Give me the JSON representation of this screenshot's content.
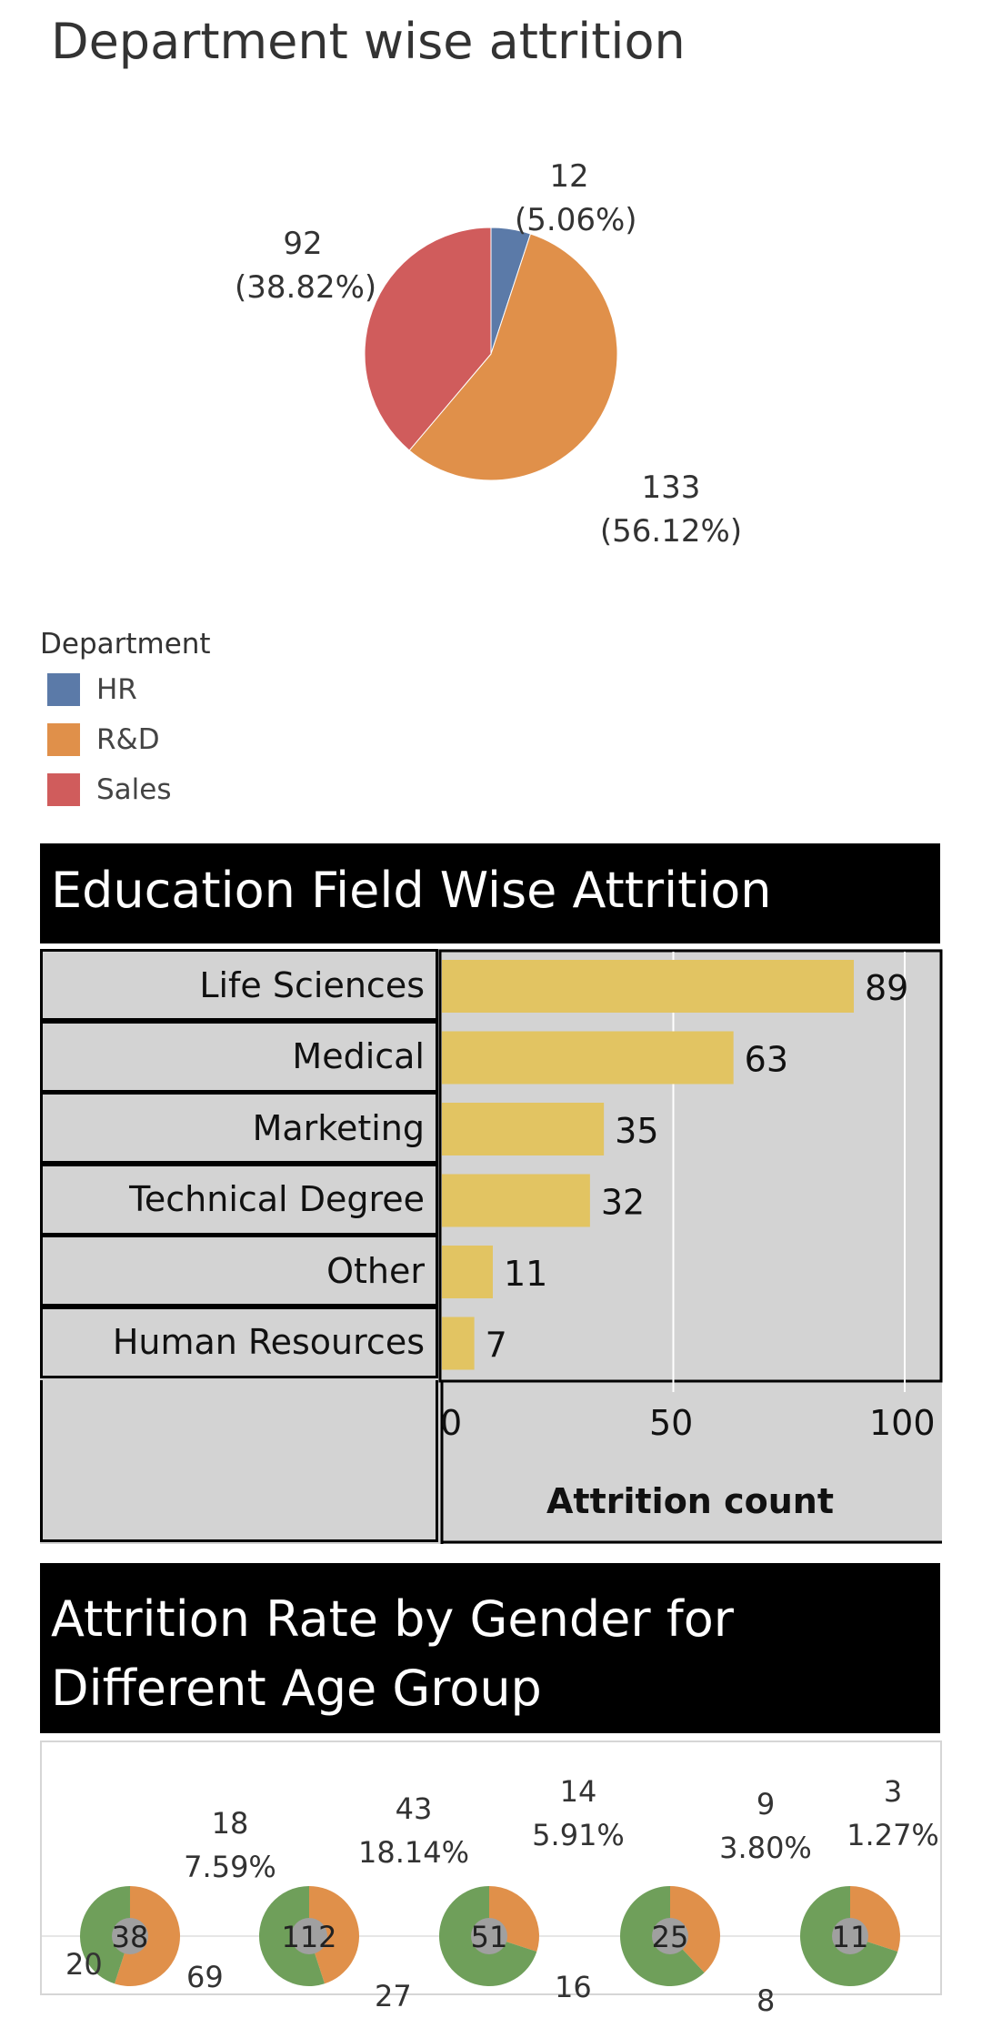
{
  "dept": {
    "title": "Department wise attrition",
    "legend_title": "Department",
    "legend": [
      {
        "label": "HR",
        "color": "#5b7aa8"
      },
      {
        "label": "R&D",
        "color": "#e0904a"
      },
      {
        "label": "Sales",
        "color": "#d05c5c"
      }
    ],
    "labels": [
      {
        "value": "12",
        "pct": "(5.06%)"
      },
      {
        "value": "133",
        "pct": "(56.12%)"
      },
      {
        "value": "92",
        "pct": "(38.82%)"
      }
    ]
  },
  "edu": {
    "title": "Education Field Wise Attrition",
    "axis_title": "Attrition count",
    "ticks": [
      "0",
      "50",
      "100"
    ]
  },
  "age": {
    "title": "Attrition Rate by Gender for Different Age Group",
    "groups": [
      {
        "top_value": "18",
        "top_pct": "7.59%",
        "center": "38",
        "left_value": "20",
        "right_value": "69"
      },
      {
        "top_value": "43",
        "top_pct": "18.14%",
        "center": "112",
        "right_value": "27"
      },
      {
        "top_value": "14",
        "top_pct": "5.91%",
        "center": "51",
        "right_value": "16"
      },
      {
        "top_value": "9",
        "top_pct": "3.80%",
        "center": "25",
        "right_value": "8"
      },
      {
        "top_value": "3",
        "top_pct": "1.27%",
        "center": "11"
      }
    ],
    "colors": {
      "female": "#e0904a",
      "male": "#6f9f5a"
    }
  },
  "chart_data": [
    {
      "type": "pie",
      "title": "Department wise attrition",
      "legend_title": "Department",
      "categories": [
        "HR",
        "R&D",
        "Sales"
      ],
      "values": [
        12,
        133,
        92
      ],
      "percentages": [
        5.06,
        56.12,
        38.82
      ],
      "colors": [
        "#5b7aa8",
        "#e0904a",
        "#d05c5c"
      ],
      "legend_placement": "bottom-left"
    },
    {
      "type": "bar",
      "orientation": "horizontal",
      "title": "Education Field Wise Attrition",
      "categories": [
        "Life Sciences",
        "Medical",
        "Marketing",
        "Technical Degree",
        "Other",
        "Human Resources"
      ],
      "values": [
        89,
        63,
        35,
        32,
        11,
        7
      ],
      "xlabel": "Attrition count",
      "xlim": [
        0,
        100
      ],
      "xticks": [
        0,
        50,
        100
      ],
      "grid": true,
      "color": "#e2c462"
    },
    {
      "type": "pie",
      "title": "Attrition Rate by Gender for Different Age Group",
      "groups": [
        {
          "center": 38,
          "total": 18,
          "pct": 7.59
        },
        {
          "center": 112,
          "total": 43,
          "pct": 18.14
        },
        {
          "center": 51,
          "total": 14,
          "pct": 5.91
        },
        {
          "center": 25,
          "total": 9,
          "pct": 3.8
        },
        {
          "center": 11,
          "total": 3,
          "pct": 1.27
        }
      ],
      "colors": [
        "#e0904a",
        "#6f9f5a"
      ]
    }
  ]
}
